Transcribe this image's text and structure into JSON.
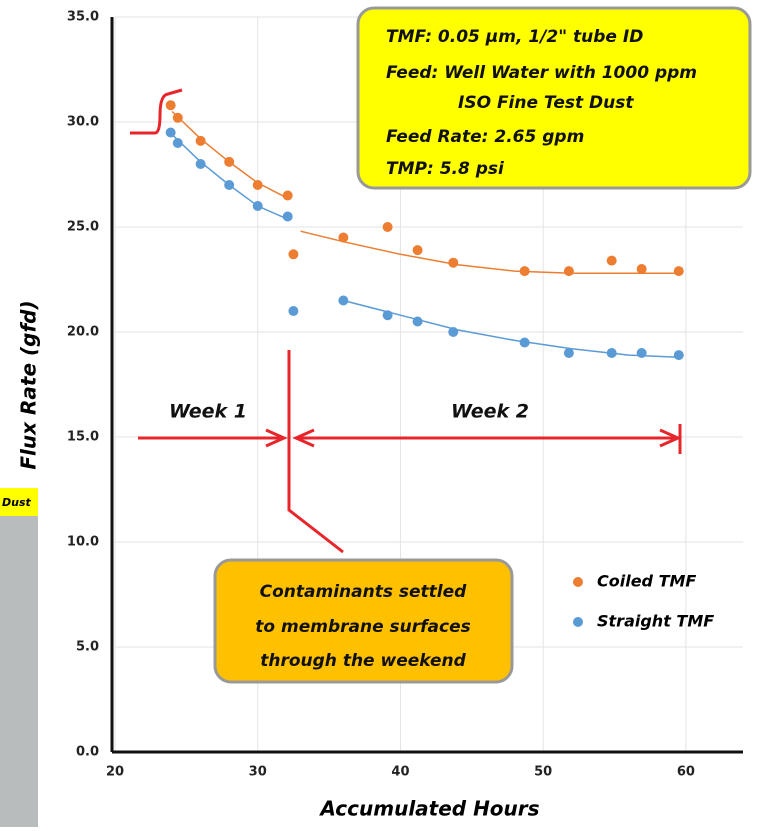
{
  "chart_data": {
    "type": "scatter",
    "xlabel": "Accumulated Hours",
    "ylabel": "Flux Rate (gfd)",
    "xlim": [
      20,
      64
    ],
    "xticks": [
      20,
      30,
      40,
      50,
      60
    ],
    "ylim": [
      0,
      35
    ],
    "yticks": [
      {
        "value": 0,
        "label": "0.0"
      },
      {
        "value": 5,
        "label": "5.0"
      },
      {
        "value": 10,
        "label": "10.0"
      },
      {
        "value": 15,
        "label": "15.0"
      },
      {
        "value": 20,
        "label": "20.0"
      },
      {
        "value": 25,
        "label": "25.0"
      },
      {
        "value": 30,
        "label": "30.0"
      },
      {
        "value": 35,
        "label": "35.0"
      }
    ],
    "grid": true,
    "legend": "lower right",
    "series": [
      {
        "name": "Coiled TMF",
        "color": "#ed7d31",
        "x": [
          23.9,
          24.4,
          26.0,
          28.0,
          30.0,
          32.1,
          32.5,
          36.0,
          39.1,
          41.2,
          43.7,
          48.7,
          51.8,
          54.8,
          56.9,
          59.5
        ],
        "values": [
          30.8,
          30.2,
          29.1,
          28.1,
          27.0,
          26.5,
          23.7,
          24.5,
          25.0,
          23.9,
          23.3,
          22.9,
          22.9,
          23.4,
          23.0,
          22.9
        ],
        "trend": {
          "x": [
            24,
            26,
            28,
            30,
            32,
            null,
            33,
            36,
            40,
            44,
            48,
            52,
            56,
            59.5
          ],
          "values": [
            30.5,
            29.2,
            28.1,
            27.1,
            26.4,
            null,
            24.8,
            24.3,
            23.7,
            23.2,
            22.9,
            22.8,
            22.8,
            22.8
          ]
        }
      },
      {
        "name": "Straight TMF",
        "color": "#5b9bd5",
        "x": [
          23.9,
          24.4,
          26.0,
          28.0,
          30.0,
          32.1,
          32.5,
          36.0,
          39.1,
          41.2,
          43.7,
          48.7,
          51.8,
          54.8,
          56.9,
          59.5
        ],
        "values": [
          29.5,
          29.0,
          28.0,
          27.0,
          26.0,
          25.5,
          21.0,
          21.5,
          20.8,
          20.5,
          20.0,
          19.5,
          19.0,
          19.0,
          19.0,
          18.9
        ],
        "trend": {
          "x": [
            24,
            26,
            28,
            30,
            32,
            null,
            36,
            40,
            44,
            48,
            52,
            56,
            59.5
          ],
          "values": [
            29.4,
            28.1,
            27.0,
            26.0,
            25.4,
            null,
            21.5,
            20.8,
            20.1,
            19.6,
            19.2,
            18.9,
            18.8
          ]
        }
      }
    ],
    "info_box": [
      "TMF: 0.05 µm, 1/2\" tube ID",
      "Feed: Well Water with 1000 ppm",
      "ISO Fine Test Dust",
      "Feed Rate: 2.65 gpm",
      "TMP: 5.8 psi"
    ],
    "week_labels": [
      "Week 1",
      "Week 2"
    ],
    "callout": [
      "Contaminants settled",
      "to membrane surfaces",
      "through the weekend"
    ],
    "side_text": "Dust"
  }
}
